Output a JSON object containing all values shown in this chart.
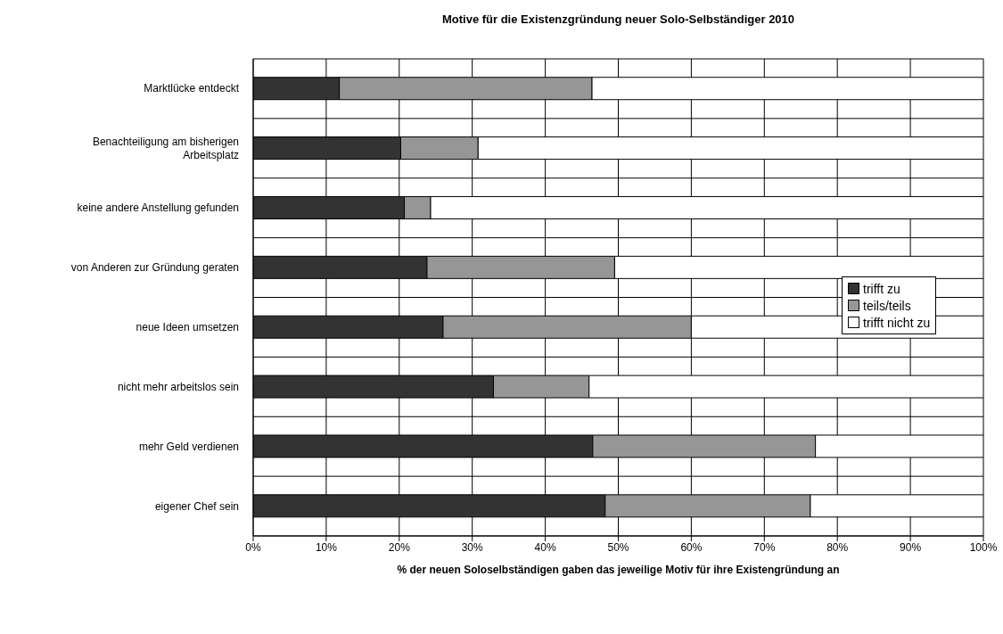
{
  "chart_data": {
    "type": "bar",
    "orientation": "horizontal",
    "stacked": true,
    "title": "Motive für die Existenzgründung neuer Solo-Selbständiger 2010",
    "xlabel": "% der neuen Soloselbständigen gaben das jeweilige Motiv für ihre Existengründung an",
    "categories": [
      "Marktlücke entdeckt",
      "Benachteiligung am bisherigen Arbeitsplatz",
      "keine andere Anstellung gefunden",
      "von Anderen zur Gründung geraten",
      "neue Ideen umsetzen",
      "nicht mehr arbeitslos sein",
      "mehr Geld verdienen",
      "eigener Chef sein"
    ],
    "series": [
      {
        "name": "trifft zu",
        "color": "#333333",
        "values": [
          11.8,
          20.2,
          20.7,
          23.8,
          26.0,
          32.9,
          46.5,
          48.2
        ]
      },
      {
        "name": "teils/teils",
        "color": "#969696",
        "values": [
          34.6,
          10.6,
          3.6,
          25.7,
          34.0,
          13.1,
          30.5,
          28.1
        ]
      },
      {
        "name": "trifft nicht zu",
        "color": "#ffffff",
        "values": [
          53.6,
          69.2,
          75.7,
          50.5,
          40.0,
          54.0,
          23.0,
          23.7
        ]
      }
    ],
    "xlim": [
      0,
      100
    ],
    "xticks": [
      {
        "value": 0,
        "label": "0%"
      },
      {
        "value": 10,
        "label": "10%"
      },
      {
        "value": 20,
        "label": "20%"
      },
      {
        "value": 30,
        "label": "30%"
      },
      {
        "value": 40,
        "label": "40%"
      },
      {
        "value": 50,
        "label": "50%"
      },
      {
        "value": 60,
        "label": "60%"
      },
      {
        "value": 70,
        "label": "70%"
      },
      {
        "value": 80,
        "label": "80%"
      },
      {
        "value": 90,
        "label": "90%"
      },
      {
        "value": 100,
        "label": "100%"
      }
    ],
    "grid": true,
    "legend": "right"
  }
}
